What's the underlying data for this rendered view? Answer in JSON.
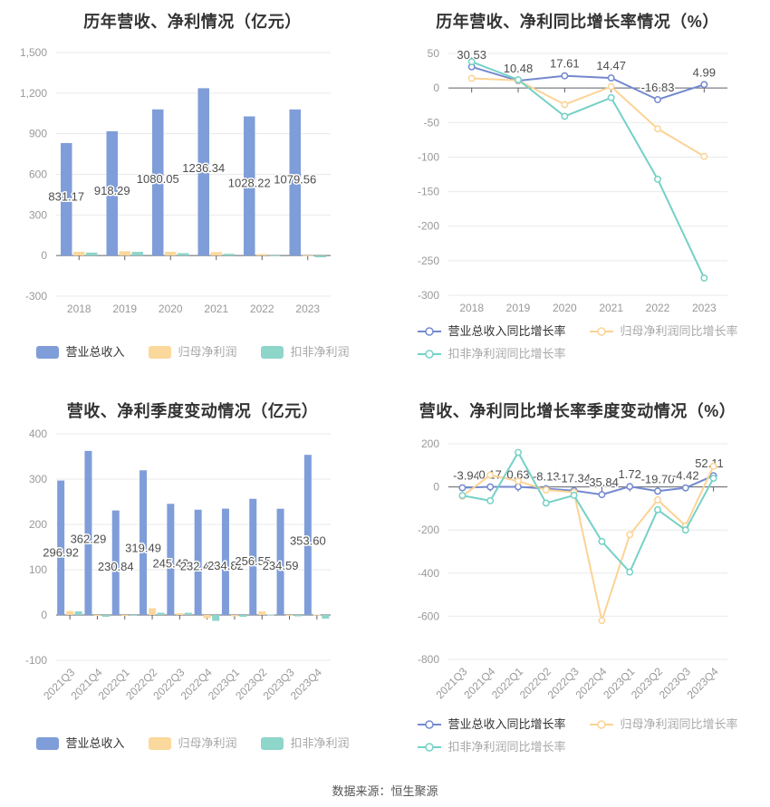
{
  "page": {
    "background": "#ffffff",
    "source_note": "数据来源：恒生聚源"
  },
  "palette": {
    "revenue_blue": "#7f9dd9",
    "net_profit_orange": "#fbd89b",
    "non_gaap_teal": "#8ed5ca",
    "line_blue": "#7389cf",
    "line_orange": "#fbd395",
    "line_teal": "#75d1c6",
    "axis_line": "#5c6068",
    "grid_line": "#e9e9eb",
    "tick_text": "#999999",
    "value_label_text": "#4d4d4d",
    "title_text": "#333333",
    "legend_active_text": "#333333",
    "legend_muted_text": "#a9a9a9"
  },
  "chart_data": [
    {
      "id": "annual-revenue-profit",
      "type": "bar",
      "title": "历年营收、净利情况（亿元）",
      "legend_position": "bottom",
      "grid": true,
      "categories": [
        "2018",
        "2019",
        "2020",
        "2021",
        "2022",
        "2023"
      ],
      "y_axis": {
        "min": -300,
        "max": 1500,
        "tick_values": [
          1500,
          1200,
          900,
          600,
          300,
          0,
          -300
        ],
        "tick_labels": [
          "1,500",
          "1,200",
          "900",
          "600",
          "300",
          "0",
          "-300"
        ]
      },
      "series": [
        {
          "key": "revenue",
          "name": "营业总收入",
          "color": "#7f9dd9",
          "values": [
            831.17,
            918.29,
            1080.05,
            1236.34,
            1028.22,
            1079.56
          ],
          "labels": [
            "831.17",
            "918.29",
            "1080.05",
            "1236.34",
            "1028.22",
            "1079.56"
          ]
        },
        {
          "key": "net-profit",
          "name": "归母净利润",
          "color": "#fbd89b",
          "values": [
            28,
            32,
            28,
            26,
            11,
            1
          ]
        },
        {
          "key": "non-gaap-net-profit",
          "name": "扣非净利润",
          "color": "#8ed5ca",
          "values": [
            22,
            27,
            18,
            13,
            1,
            -13
          ]
        }
      ],
      "legend_rows": [
        [
          0,
          1,
          2
        ]
      ]
    },
    {
      "id": "annual-growth-rates",
      "type": "line",
      "title": "历年营收、净利同比增长率情况（%）",
      "legend_position": "bottom",
      "grid": true,
      "categories": [
        "2018",
        "2019",
        "2020",
        "2021",
        "2022",
        "2023"
      ],
      "y_axis": {
        "min": -300,
        "max": 50,
        "tick_values": [
          50,
          0,
          -50,
          -100,
          -150,
          -200,
          -250,
          -300
        ],
        "tick_labels": [
          "50",
          "0",
          "-50",
          "-100",
          "-150",
          "-200",
          "-250",
          "-300"
        ]
      },
      "series": [
        {
          "key": "revenue-growth",
          "name": "营业总收入同比增长率",
          "color": "#7389cf",
          "values": [
            30.53,
            10.48,
            17.61,
            14.47,
            -16.83,
            4.99
          ],
          "labels": [
            "30.53",
            "10.48",
            "17.61",
            "14.47",
            "-16.83",
            "4.99"
          ]
        },
        {
          "key": "net-profit-growth",
          "name": "归母净利润同比增长率",
          "color": "#fbd395",
          "values": [
            14,
            11,
            -24,
            2,
            -59,
            -99
          ]
        },
        {
          "key": "non-gaap-net-profit-growth",
          "name": "扣非净利润同比增长率",
          "color": "#75d1c6",
          "values": [
            38,
            12,
            -41,
            -14,
            -132,
            -275
          ]
        }
      ],
      "legend_rows": [
        [
          0,
          1
        ],
        [
          2
        ]
      ]
    },
    {
      "id": "quarterly-revenue-profit",
      "type": "bar",
      "title": "营收、净利季度变动情况（亿元）",
      "legend_position": "bottom",
      "grid": true,
      "categories": [
        "2021Q3",
        "2021Q4",
        "2022Q1",
        "2022Q2",
        "2022Q3",
        "2022Q4",
        "2023Q1",
        "2023Q2",
        "2023Q3",
        "2023Q4"
      ],
      "y_axis": {
        "min": -100,
        "max": 400,
        "tick_values": [
          400,
          300,
          200,
          100,
          0,
          -100
        ],
        "tick_labels": [
          "400",
          "300",
          "200",
          "100",
          "0",
          "-100"
        ]
      },
      "series": [
        {
          "key": "revenue",
          "name": "营业总收入",
          "color": "#7f9dd9",
          "values": [
            296.92,
            362.29,
            230.84,
            319.49,
            245.43,
            232.46,
            234.82,
            256.55,
            234.59,
            353.6
          ],
          "labels": [
            "296.92",
            "362.29",
            "230.84",
            "319.49",
            "245.43",
            "232.46",
            "234.82",
            "256.55",
            "234.59",
            "353.60"
          ]
        },
        {
          "key": "net-profit",
          "name": "归母净利润",
          "color": "#fbd89b",
          "values": [
            9,
            -2,
            -2,
            15,
            4,
            -7,
            -3,
            8,
            -1,
            1
          ]
        },
        {
          "key": "non-gaap-net-profit",
          "name": "扣非净利润",
          "color": "#8ed5ca",
          "values": [
            8,
            -4,
            -1,
            5,
            5,
            -13,
            -4,
            1,
            -3,
            -8
          ]
        }
      ],
      "legend_rows": [
        [
          0,
          1,
          2
        ]
      ]
    },
    {
      "id": "quarterly-growth-rates",
      "type": "line",
      "title": "营收、净利同比增长率季度变动情况（%）",
      "legend_position": "bottom",
      "grid": true,
      "categories": [
        "2021Q3",
        "2021Q4",
        "2022Q1",
        "2022Q2",
        "2022Q3",
        "2022Q4",
        "2023Q1",
        "2023Q2",
        "2023Q3",
        "2023Q4"
      ],
      "y_axis": {
        "min": -800,
        "max": 200,
        "tick_values": [
          200,
          0,
          -200,
          -400,
          -600,
          -800
        ],
        "tick_labels": [
          "200",
          "0",
          "-200",
          "-400",
          "-600",
          "-800"
        ]
      },
      "series": [
        {
          "key": "revenue-growth",
          "name": "营业总收入同比增长率",
          "color": "#7389cf",
          "values": [
            -3.94,
            0.17,
            0.63,
            -8.13,
            -17.34,
            -35.84,
            1.72,
            -19.7,
            -4.42,
            52.11
          ],
          "labels": [
            "-3.94",
            "0.17",
            "0.63",
            "-8.13",
            "-17.34",
            "-35.84",
            "1.72",
            "-19.70",
            "-4.42",
            "52.11"
          ]
        },
        {
          "key": "net-profit-growth",
          "name": "归母净利润同比增长率",
          "color": "#fbd395",
          "values": [
            -43,
            55,
            27,
            -14,
            -25,
            -620,
            -222,
            -60,
            -180,
            96
          ]
        },
        {
          "key": "non-gaap-net-profit-growth",
          "name": "扣非净利润同比增长率",
          "color": "#75d1c6",
          "values": [
            -40,
            -64,
            160,
            -75,
            -39,
            -253,
            -395,
            -106,
            -200,
            40
          ]
        }
      ],
      "legend_rows": [
        [
          0,
          1
        ],
        [
          2
        ]
      ]
    }
  ]
}
